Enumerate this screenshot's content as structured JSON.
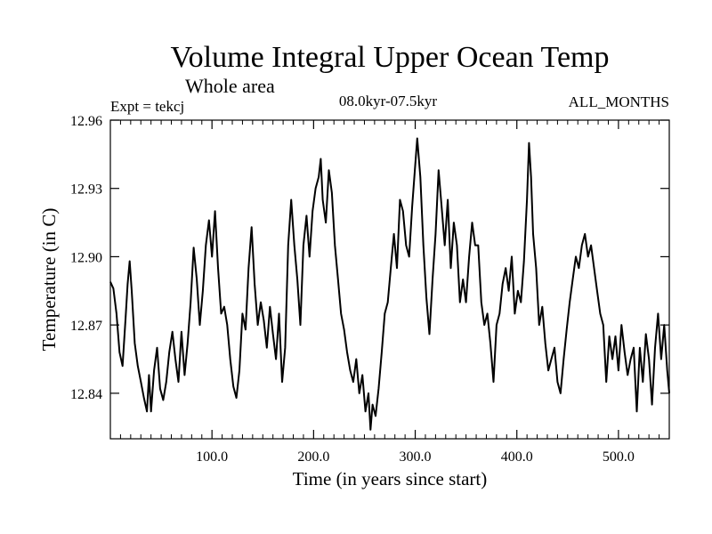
{
  "chart_data": {
    "type": "line",
    "title": "Volume Integral Upper Ocean Temp",
    "subtitle": "Whole area",
    "experiment": "Expt = tekcj",
    "period": "08.0kyr-07.5kyr",
    "months": "ALL_MONTHS",
    "xlabel": "Time (in years since start)",
    "ylabel": "Temperature (in C)",
    "xlim": [
      0,
      550
    ],
    "ylim": [
      12.82,
      12.96
    ],
    "xticks": [
      100,
      200,
      300,
      400,
      500
    ],
    "xtick_labels": [
      "100.0",
      "200.0",
      "300.0",
      "400.0",
      "500.0"
    ],
    "yticks": [
      12.84,
      12.87,
      12.9,
      12.93,
      12.96
    ],
    "ytick_labels": [
      "12.84",
      "12.87",
      "12.90",
      "12.93",
      "12.96"
    ],
    "series": [
      {
        "name": "Volume Integral Upper Ocean Temp",
        "color": "#000000",
        "points": [
          [
            0,
            12.889
          ],
          [
            3,
            12.886
          ],
          [
            6,
            12.875
          ],
          [
            9,
            12.858
          ],
          [
            12,
            12.852
          ],
          [
            15,
            12.873
          ],
          [
            17,
            12.888
          ],
          [
            19,
            12.898
          ],
          [
            21,
            12.885
          ],
          [
            24,
            12.862
          ],
          [
            27,
            12.852
          ],
          [
            30,
            12.845
          ],
          [
            33,
            12.838
          ],
          [
            36,
            12.832
          ],
          [
            38,
            12.848
          ],
          [
            40,
            12.832
          ],
          [
            43,
            12.85
          ],
          [
            46,
            12.86
          ],
          [
            49,
            12.842
          ],
          [
            52,
            12.837
          ],
          [
            55,
            12.845
          ],
          [
            58,
            12.858
          ],
          [
            61,
            12.867
          ],
          [
            64,
            12.855
          ],
          [
            67,
            12.845
          ],
          [
            70,
            12.867
          ],
          [
            73,
            12.848
          ],
          [
            76,
            12.862
          ],
          [
            79,
            12.88
          ],
          [
            82,
            12.904
          ],
          [
            85,
            12.89
          ],
          [
            88,
            12.87
          ],
          [
            91,
            12.885
          ],
          [
            94,
            12.905
          ],
          [
            97,
            12.916
          ],
          [
            100,
            12.9
          ],
          [
            103,
            12.92
          ],
          [
            106,
            12.895
          ],
          [
            109,
            12.875
          ],
          [
            112,
            12.878
          ],
          [
            115,
            12.87
          ],
          [
            118,
            12.855
          ],
          [
            121,
            12.843
          ],
          [
            124,
            12.838
          ],
          [
            127,
            12.85
          ],
          [
            130,
            12.875
          ],
          [
            133,
            12.868
          ],
          [
            136,
            12.895
          ],
          [
            139,
            12.913
          ],
          [
            142,
            12.888
          ],
          [
            145,
            12.87
          ],
          [
            148,
            12.88
          ],
          [
            151,
            12.872
          ],
          [
            154,
            12.86
          ],
          [
            157,
            12.878
          ],
          [
            160,
            12.866
          ],
          [
            163,
            12.855
          ],
          [
            166,
            12.875
          ],
          [
            169,
            12.845
          ],
          [
            172,
            12.86
          ],
          [
            175,
            12.905
          ],
          [
            178,
            12.925
          ],
          [
            181,
            12.905
          ],
          [
            184,
            12.89
          ],
          [
            187,
            12.87
          ],
          [
            190,
            12.905
          ],
          [
            193,
            12.918
          ],
          [
            196,
            12.9
          ],
          [
            199,
            12.92
          ],
          [
            202,
            12.93
          ],
          [
            205,
            12.935
          ],
          [
            207,
            12.943
          ],
          [
            209,
            12.925
          ],
          [
            212,
            12.915
          ],
          [
            215,
            12.938
          ],
          [
            218,
            12.928
          ],
          [
            221,
            12.905
          ],
          [
            224,
            12.89
          ],
          [
            227,
            12.875
          ],
          [
            230,
            12.868
          ],
          [
            233,
            12.858
          ],
          [
            236,
            12.85
          ],
          [
            239,
            12.845
          ],
          [
            242,
            12.855
          ],
          [
            245,
            12.84
          ],
          [
            248,
            12.848
          ],
          [
            251,
            12.832
          ],
          [
            254,
            12.84
          ],
          [
            256,
            12.824
          ],
          [
            258,
            12.835
          ],
          [
            261,
            12.83
          ],
          [
            264,
            12.842
          ],
          [
            267,
            12.858
          ],
          [
            270,
            12.875
          ],
          [
            273,
            12.88
          ],
          [
            276,
            12.895
          ],
          [
            279,
            12.91
          ],
          [
            282,
            12.895
          ],
          [
            285,
            12.925
          ],
          [
            288,
            12.92
          ],
          [
            291,
            12.905
          ],
          [
            294,
            12.9
          ],
          [
            297,
            12.922
          ],
          [
            300,
            12.94
          ],
          [
            302,
            12.952
          ],
          [
            305,
            12.935
          ],
          [
            308,
            12.905
          ],
          [
            311,
            12.882
          ],
          [
            314,
            12.866
          ],
          [
            317,
            12.89
          ],
          [
            320,
            12.91
          ],
          [
            323,
            12.938
          ],
          [
            326,
            12.922
          ],
          [
            329,
            12.905
          ],
          [
            332,
            12.925
          ],
          [
            335,
            12.895
          ],
          [
            338,
            12.915
          ],
          [
            341,
            12.905
          ],
          [
            344,
            12.88
          ],
          [
            347,
            12.89
          ],
          [
            350,
            12.88
          ],
          [
            353,
            12.9
          ],
          [
            356,
            12.915
          ],
          [
            359,
            12.905
          ],
          [
            362,
            12.905
          ],
          [
            365,
            12.88
          ],
          [
            368,
            12.87
          ],
          [
            371,
            12.875
          ],
          [
            374,
            12.862
          ],
          [
            377,
            12.845
          ],
          [
            380,
            12.87
          ],
          [
            383,
            12.875
          ],
          [
            386,
            12.888
          ],
          [
            389,
            12.895
          ],
          [
            392,
            12.885
          ],
          [
            395,
            12.9
          ],
          [
            398,
            12.875
          ],
          [
            401,
            12.885
          ],
          [
            404,
            12.88
          ],
          [
            407,
            12.898
          ],
          [
            410,
            12.925
          ],
          [
            412,
            12.95
          ],
          [
            414,
            12.935
          ],
          [
            416,
            12.91
          ],
          [
            419,
            12.895
          ],
          [
            422,
            12.87
          ],
          [
            425,
            12.878
          ],
          [
            428,
            12.862
          ],
          [
            431,
            12.85
          ],
          [
            434,
            12.855
          ],
          [
            437,
            12.86
          ],
          [
            440,
            12.845
          ],
          [
            443,
            12.84
          ],
          [
            446,
            12.855
          ],
          [
            449,
            12.868
          ],
          [
            452,
            12.88
          ],
          [
            455,
            12.89
          ],
          [
            458,
            12.9
          ],
          [
            461,
            12.895
          ],
          [
            464,
            12.905
          ],
          [
            467,
            12.91
          ],
          [
            470,
            12.9
          ],
          [
            473,
            12.905
          ],
          [
            476,
            12.895
          ],
          [
            479,
            12.885
          ],
          [
            482,
            12.875
          ],
          [
            485,
            12.87
          ],
          [
            488,
            12.845
          ],
          [
            491,
            12.865
          ],
          [
            494,
            12.855
          ],
          [
            497,
            12.865
          ],
          [
            500,
            12.85
          ],
          [
            503,
            12.87
          ],
          [
            506,
            12.858
          ],
          [
            509,
            12.848
          ],
          [
            512,
            12.855
          ],
          [
            515,
            12.86
          ],
          [
            518,
            12.832
          ],
          [
            521,
            12.86
          ],
          [
            524,
            12.845
          ],
          [
            527,
            12.866
          ],
          [
            530,
            12.855
          ],
          [
            533,
            12.835
          ],
          [
            536,
            12.86
          ],
          [
            539,
            12.875
          ],
          [
            542,
            12.855
          ],
          [
            545,
            12.87
          ],
          [
            548,
            12.85
          ],
          [
            550,
            12.84
          ]
        ]
      }
    ]
  }
}
